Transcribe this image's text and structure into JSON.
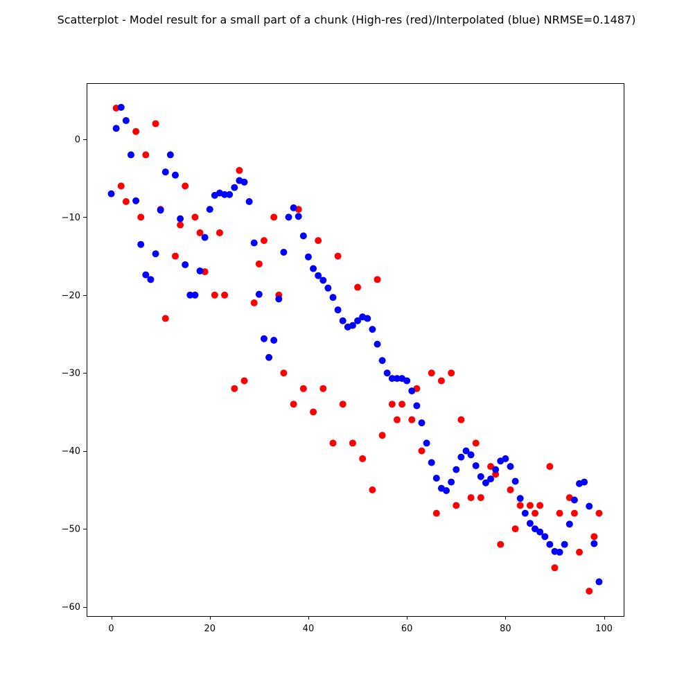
{
  "chart_data": {
    "type": "scatter",
    "title": "Scatterplot - Model result for a small part of a chunk (High-res (red)/Interpolated (blue) NRMSE=0.1487)",
    "xlabel": "",
    "ylabel": "",
    "xlim": [
      -5,
      104
    ],
    "ylim": [
      -61.2,
      7.2
    ],
    "xticks": [
      0,
      20,
      40,
      60,
      80,
      100
    ],
    "yticks": [
      0,
      -10,
      -20,
      -30,
      -40,
      -50,
      -60
    ],
    "grid": false,
    "series": [
      {
        "color": "#ff0000",
        "x": [
          1,
          2,
          3,
          5,
          6,
          7,
          9,
          10,
          11,
          13,
          14,
          15,
          17,
          18,
          19,
          21,
          22,
          23,
          25,
          26,
          27,
          29,
          30,
          31,
          33,
          34,
          35,
          37,
          38,
          39,
          41,
          42,
          43,
          45,
          46,
          47,
          49,
          50,
          51,
          53,
          54,
          55,
          57,
          58,
          59,
          61,
          62,
          63,
          65,
          66,
          67,
          69,
          70,
          71,
          73,
          74,
          75,
          77,
          78,
          79,
          81,
          82,
          83,
          85,
          86,
          87,
          89,
          90,
          91,
          93,
          94,
          95,
          97,
          98,
          99
        ],
        "y": [
          4,
          -6,
          -8,
          1,
          -10,
          -2,
          2,
          -9,
          -23,
          -15,
          -11,
          -6,
          -10,
          -12,
          -17,
          -20,
          -12,
          -20,
          -32,
          -4,
          -31,
          -21,
          -16,
          -13,
          -10,
          -20,
          -30,
          -34,
          -9,
          -32,
          -35,
          -13,
          -32,
          -39,
          -15,
          -34,
          -39,
          -19,
          -41,
          -45,
          -18,
          -38,
          -34,
          -36,
          -34,
          -36,
          -32,
          -40,
          -30,
          -48,
          -31,
          -30,
          -47,
          -36,
          -46,
          -39,
          -46,
          -42,
          -43,
          -52,
          -45,
          -50,
          -47,
          -47,
          -48,
          -47,
          -42,
          -55,
          -48,
          -46,
          -48,
          -53,
          -58,
          -51,
          -48
        ]
      },
      {
        "color": "#0000ff",
        "x": [
          0,
          1,
          2,
          3,
          4,
          5,
          6,
          7,
          8,
          9,
          10,
          11,
          12,
          13,
          14,
          15,
          16,
          17,
          18,
          19,
          20,
          21,
          22,
          23,
          24,
          25,
          26,
          27,
          28,
          29,
          30,
          31,
          32,
          33,
          34,
          35,
          36,
          37,
          38,
          39,
          40,
          41,
          42,
          43,
          44,
          45,
          46,
          47,
          48,
          49,
          50,
          51,
          52,
          53,
          54,
          55,
          56,
          57,
          58,
          59,
          60,
          61,
          62,
          63,
          64,
          65,
          66,
          67,
          68,
          69,
          70,
          71,
          72,
          73,
          74,
          75,
          76,
          77,
          78,
          79,
          80,
          81,
          82,
          83,
          84,
          85,
          86,
          87,
          88,
          89,
          90,
          91,
          92,
          93,
          94,
          95,
          96,
          97,
          98,
          99
        ],
        "y": [
          -7,
          1.4,
          4.1,
          2.4,
          -2,
          -7.9,
          -13.5,
          -17.4,
          -18,
          -14.7,
          -9.1,
          -4.2,
          -2,
          -4.6,
          -10.2,
          -16.1,
          -20,
          -20,
          -16.9,
          -12.6,
          -9,
          -7.2,
          -6.9,
          -7.1,
          -7.1,
          -6.2,
          -5.3,
          -5.5,
          -8,
          -13.3,
          -19.9,
          -25.6,
          -28,
          -25.8,
          -20.5,
          -14.5,
          -10,
          -8.8,
          -9.9,
          -12.4,
          -15.1,
          -16.6,
          -17.5,
          -18.1,
          -19.1,
          -20.3,
          -21.9,
          -23.3,
          -24.1,
          -23.9,
          -23.3,
          -22.8,
          -23,
          -24.4,
          -26.3,
          -28.4,
          -30,
          -30.7,
          -30.7,
          -30.7,
          -31,
          -32.3,
          -34.2,
          -36.4,
          -39,
          -41.5,
          -43.5,
          -44.8,
          -45.1,
          -44,
          -42.4,
          -40.8,
          -40,
          -40.5,
          -41.9,
          -43.3,
          -44.1,
          -43.6,
          -42.4,
          -41.3,
          -41,
          -42,
          -43.9,
          -46.1,
          -48,
          -49.3,
          -50,
          -50.4,
          -51,
          -52,
          -52.9,
          -53,
          -52,
          -49.4,
          -46.3,
          -44.2,
          -44,
          -47.1,
          -51.9,
          -56.8
        ]
      }
    ]
  }
}
